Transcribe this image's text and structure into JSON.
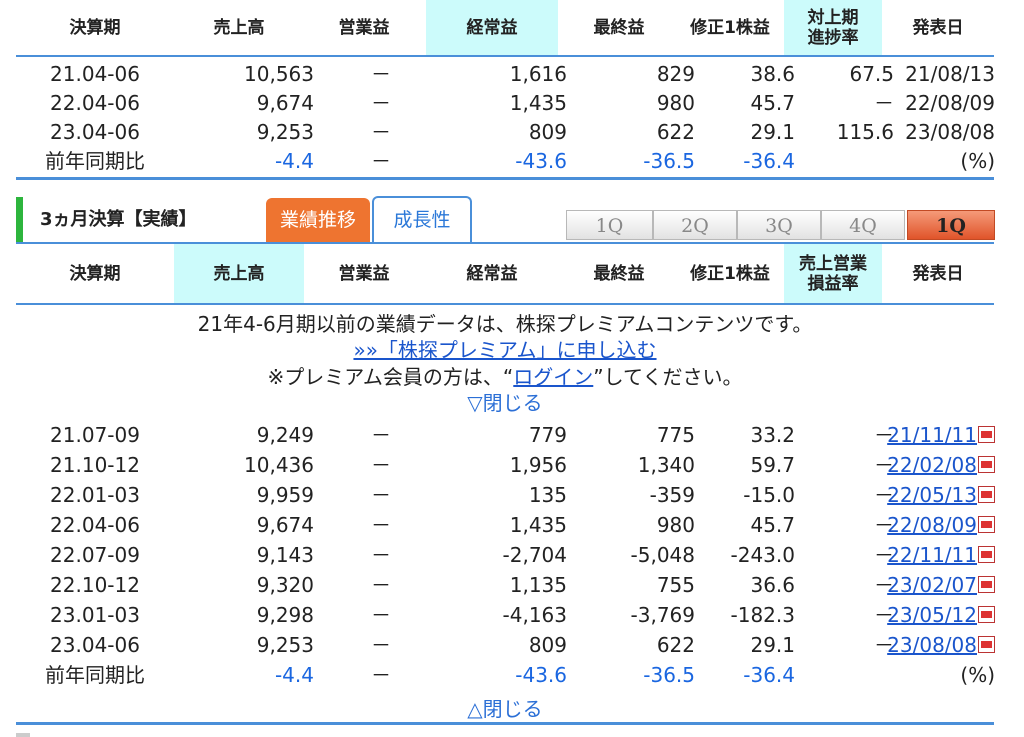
{
  "annual": {
    "headers": [
      "決算期",
      "売上高",
      "営業益",
      "経常益",
      "最終益",
      "修正1株益",
      "対上期\n進捗率",
      "発表日"
    ],
    "rows": [
      [
        "21.04-06",
        "10,563",
        "－",
        "1,616",
        "829",
        "38.6",
        "67.5",
        "21/08/13"
      ],
      [
        "22.04-06",
        "9,674",
        "－",
        "1,435",
        "980",
        "45.7",
        "－",
        "22/08/09"
      ],
      [
        "23.04-06",
        "9,253",
        "－",
        "809",
        "622",
        "29.1",
        "115.6",
        "23/08/08"
      ]
    ],
    "yoy": [
      "前年同期比",
      "-4.4",
      "－",
      "-43.6",
      "-36.5",
      "-36.4",
      "",
      "(%)"
    ]
  },
  "quarterly": {
    "section_title": "3ヵ月決算【実績】",
    "tab_active": "業績推移",
    "tab_inactive": "成長性",
    "quarter_buttons": [
      "1Q",
      "2Q",
      "3Q",
      "4Q",
      "1Q"
    ],
    "headers": [
      "決算期",
      "売上高",
      "営業益",
      "経常益",
      "最終益",
      "修正1株益",
      "売上営業\n損益率",
      "発表日"
    ],
    "notice_line1": "21年4-6月期以前の業績データは、株探プレミアムコンテンツです。",
    "premium_link": "»»「株探プレミアム」に申し込む",
    "login_prefix": "※プレミアム会員の方は、“",
    "login_link": "ログイン",
    "login_suffix": "”してください。",
    "close_top": "▽閉じる",
    "rows": [
      [
        "21.07-09",
        "9,249",
        "－",
        "779",
        "775",
        "33.2",
        "－",
        "21/11/11"
      ],
      [
        "21.10-12",
        "10,436",
        "－",
        "1,956",
        "1,340",
        "59.7",
        "－",
        "22/02/08"
      ],
      [
        "22.01-03",
        "9,959",
        "－",
        "135",
        "-359",
        "-15.0",
        "－",
        "22/05/13"
      ],
      [
        "22.04-06",
        "9,674",
        "－",
        "1,435",
        "980",
        "45.7",
        "－",
        "22/08/09"
      ],
      [
        "22.07-09",
        "9,143",
        "－",
        "-2,704",
        "-5,048",
        "-243.0",
        "－",
        "22/11/11"
      ],
      [
        "22.10-12",
        "9,320",
        "－",
        "1,135",
        "755",
        "36.6",
        "－",
        "23/02/07"
      ],
      [
        "23.01-03",
        "9,298",
        "－",
        "-4,163",
        "-3,769",
        "-182.3",
        "－",
        "23/05/12"
      ],
      [
        "23.04-06",
        "9,253",
        "－",
        "809",
        "622",
        "29.1",
        "－",
        "23/08/08"
      ]
    ],
    "yoy": [
      "前年同期比",
      "-4.4",
      "－",
      "-43.6",
      "-36.5",
      "-36.4",
      "",
      "(%)"
    ],
    "close_bottom": "△閉じる"
  }
}
